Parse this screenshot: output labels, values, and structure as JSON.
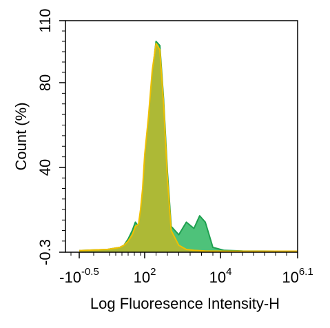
{
  "chart_data": {
    "type": "area",
    "title": "",
    "xlabel": "Log Fluoresence Intensity-H",
    "ylabel": "Count  (%)",
    "xscale": "biexponential",
    "ylim": [
      -0.3,
      110
    ],
    "x_tick_labels": [
      {
        "x": -0.5,
        "base": "-10",
        "exp": "-0.5"
      },
      {
        "x": 2,
        "base": "10",
        "exp": "2"
      },
      {
        "x": 4,
        "base": "10",
        "exp": "4"
      },
      {
        "x": 6.1,
        "base": "10",
        "exp": "6.1"
      }
    ],
    "y_tick_labels": [
      "-0.3",
      "40",
      "80",
      "110"
    ],
    "y_ticks": [
      -0.3,
      40,
      80,
      110
    ],
    "grid": false,
    "legend": "none",
    "series": [
      {
        "color": "#1fa050",
        "fill": "#4ec27a",
        "x": [
          -0.5,
          0.2,
          0.8,
          1.0,
          1.2,
          1.4,
          1.55,
          1.7,
          1.8,
          1.9,
          2.0,
          2.1,
          2.2,
          2.3,
          2.4,
          2.5,
          2.6,
          2.7,
          2.9,
          3.1,
          3.3,
          3.45,
          3.6,
          3.8,
          4.1,
          4.6,
          5.5,
          6.1
        ],
        "values": [
          0.5,
          1,
          2,
          3,
          6,
          10,
          14,
          12,
          18,
          28,
          44,
          62,
          84,
          100,
          98,
          72,
          38,
          12,
          8,
          14,
          11,
          17,
          14,
          2,
          0.6,
          0.3,
          0.2,
          0.2
        ]
      },
      {
        "color": "#f0c000",
        "fill": "#b5b830",
        "x": [
          -0.5,
          0.2,
          0.8,
          1.0,
          1.2,
          1.4,
          1.55,
          1.7,
          1.8,
          1.9,
          2.0,
          2.1,
          2.2,
          2.3,
          2.4,
          2.5,
          2.6,
          2.7,
          2.9,
          3.1,
          3.3,
          3.6,
          4.1,
          6.1
        ],
        "values": [
          0.5,
          1,
          2,
          3,
          5,
          8,
          12,
          13,
          20,
          30,
          46,
          64,
          86,
          99,
          96,
          70,
          35,
          10,
          3,
          1,
          0.6,
          0.3,
          0.2,
          0.2
        ]
      }
    ]
  }
}
